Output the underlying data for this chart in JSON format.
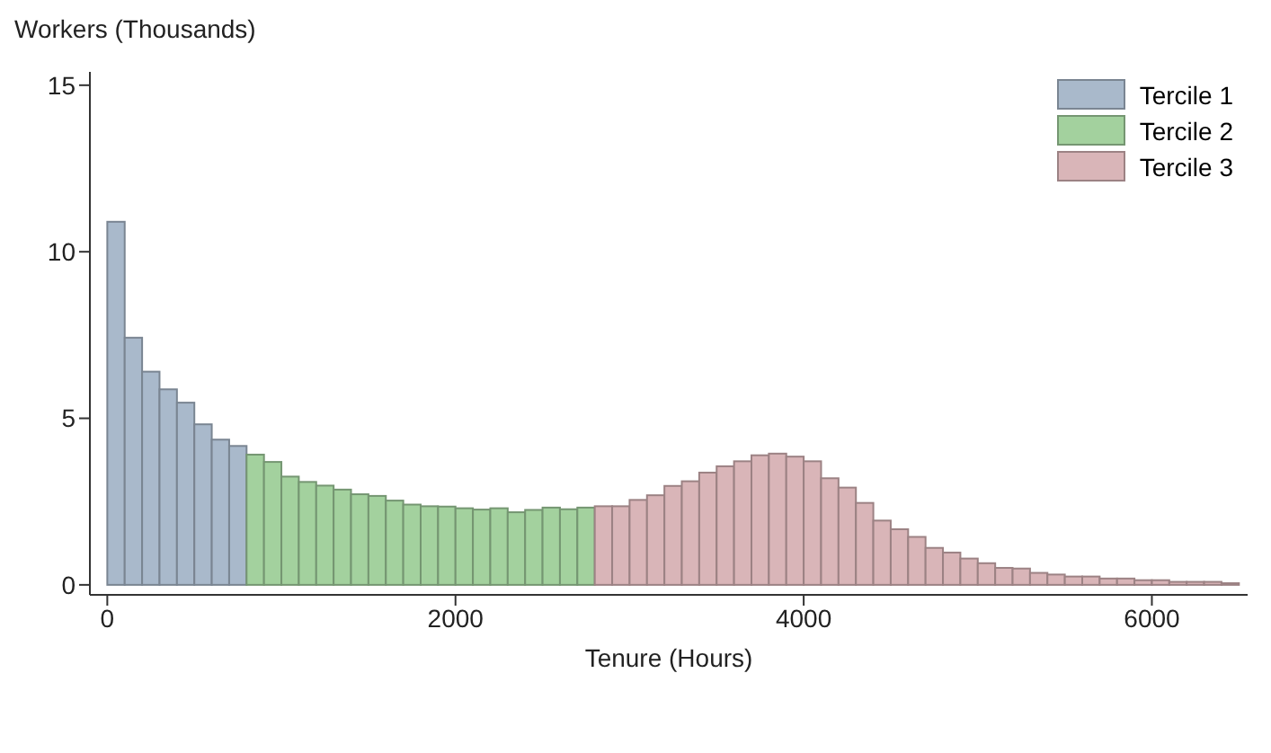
{
  "chart_data": {
    "type": "histogram",
    "xlabel": "Tenure (Hours)",
    "ylabel": "Workers (Thousands)",
    "bins": [
      0,
      100,
      200,
      300,
      400,
      500,
      600,
      700,
      800,
      900,
      1000,
      1100,
      1200,
      1300,
      1400,
      1500,
      1600,
      1700,
      1800,
      1900,
      2000,
      2100,
      2200,
      2300,
      2400,
      2500,
      2600,
      2700,
      2800,
      2900,
      3000,
      3100,
      3200,
      3300,
      3400,
      3500,
      3600,
      3700,
      3800,
      3900,
      4000,
      4100,
      4200,
      4300,
      4400,
      4500,
      4600,
      4700,
      4800,
      4900,
      5000,
      5100,
      5200,
      5300,
      5400,
      5500,
      5600,
      5700,
      5800,
      5900,
      6000,
      6100,
      6200,
      6300,
      6400,
      6500
    ],
    "series": [
      {
        "name": "Tercile 1",
        "color": "#a9b9cb",
        "values": [
          10.9,
          7.42,
          6.4,
          5.87,
          5.47,
          4.82,
          4.36,
          4.17,
          null,
          null,
          null,
          null,
          null,
          null,
          null,
          null,
          null,
          null,
          null,
          null,
          null,
          null,
          null,
          null,
          null,
          null,
          null,
          null,
          null,
          null,
          null,
          null,
          null,
          null,
          null,
          null,
          null,
          null,
          null,
          null,
          null,
          null,
          null,
          null,
          null,
          null,
          null,
          null,
          null,
          null,
          null,
          null,
          null,
          null,
          null,
          null,
          null,
          null,
          null,
          null,
          null,
          null,
          null,
          null,
          null
        ]
      },
      {
        "name": "Tercile 2",
        "color": "#a3d19e",
        "values": [
          null,
          null,
          null,
          null,
          null,
          null,
          null,
          null,
          3.91,
          3.69,
          3.25,
          3.09,
          2.98,
          2.86,
          2.72,
          2.67,
          2.53,
          2.41,
          2.36,
          2.35,
          2.3,
          2.26,
          2.3,
          2.18,
          2.25,
          2.32,
          2.27,
          2.32,
          null,
          null,
          null,
          null,
          null,
          null,
          null,
          null,
          null,
          null,
          null,
          null,
          null,
          null,
          null,
          null,
          null,
          null,
          null,
          null,
          null,
          null,
          null,
          null,
          null,
          null,
          null,
          null,
          null,
          null,
          null,
          null,
          null,
          null,
          null,
          null,
          null
        ]
      },
      {
        "name": "Tercile 3",
        "color": "#d9b5b8",
        "values": [
          null,
          null,
          null,
          null,
          null,
          null,
          null,
          null,
          null,
          null,
          null,
          null,
          null,
          null,
          null,
          null,
          null,
          null,
          null,
          null,
          null,
          null,
          null,
          null,
          null,
          null,
          null,
          null,
          2.36,
          2.36,
          2.55,
          2.69,
          2.97,
          3.11,
          3.37,
          3.56,
          3.71,
          3.89,
          3.94,
          3.85,
          3.71,
          3.2,
          2.92,
          2.46,
          1.93,
          1.67,
          1.44,
          1.11,
          0.97,
          0.79,
          0.65,
          0.51,
          0.49,
          0.36,
          0.31,
          0.25,
          0.25,
          0.19,
          0.19,
          0.14,
          0.14,
          0.09,
          0.09,
          0.09,
          0.05
        ]
      }
    ],
    "xlim": [
      -100,
      6550
    ],
    "xticks": [
      0,
      2000,
      4000,
      6000
    ],
    "ylim": [
      -0.3,
      15.4
    ],
    "yticks": [
      0,
      5,
      10,
      15
    ],
    "legend": "top right"
  }
}
